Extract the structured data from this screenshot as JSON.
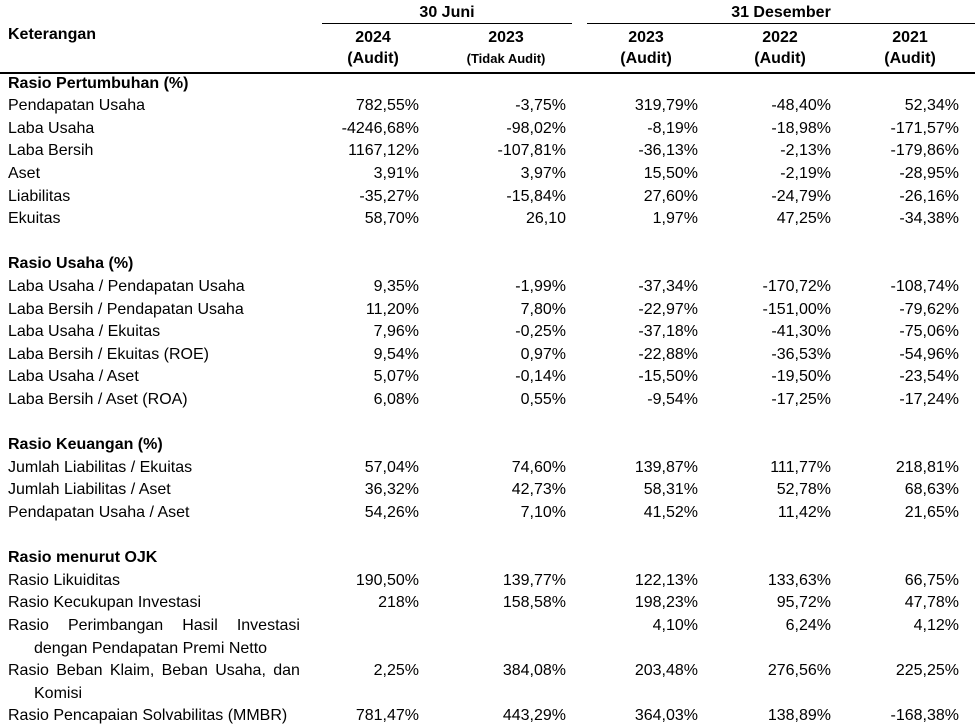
{
  "header": {
    "group_left": "30 Juni",
    "group_right": "31 Desember",
    "keterangan": "Keterangan",
    "columns": [
      {
        "year": "2024",
        "sub": "(Audit)"
      },
      {
        "year": "2023",
        "sub": "(Tidak Audit)"
      },
      {
        "year": "2023",
        "sub": "(Audit)"
      },
      {
        "year": "2022",
        "sub": "(Audit)"
      },
      {
        "year": "2021",
        "sub": "(Audit)"
      }
    ]
  },
  "rows": [
    {
      "kind": "section",
      "label": "Rasio Pertumbuhan (%)"
    },
    {
      "kind": "data",
      "label": "Pendapatan Usaha",
      "values": [
        "782,55%",
        "-3,75%",
        "319,79%",
        "-48,40%",
        "52,34%"
      ]
    },
    {
      "kind": "data",
      "label": "Laba Usaha",
      "values": [
        "-4246,68%",
        "-98,02%",
        "-8,19%",
        "-18,98%",
        "-171,57%"
      ]
    },
    {
      "kind": "data",
      "label": "Laba Bersih",
      "values": [
        "1167,12%",
        "-107,81%",
        "-36,13%",
        "-2,13%",
        "-179,86%"
      ]
    },
    {
      "kind": "data",
      "label": "Aset",
      "values": [
        "3,91%",
        "3,97%",
        "15,50%",
        "-2,19%",
        "-28,95%"
      ]
    },
    {
      "kind": "data",
      "label": "Liabilitas",
      "values": [
        "-35,27%",
        "-15,84%",
        "27,60%",
        "-24,79%",
        "-26,16%"
      ]
    },
    {
      "kind": "data",
      "label": "Ekuitas",
      "values": [
        "58,70%",
        "26,10",
        "1,97%",
        "47,25%",
        "-34,38%"
      ]
    },
    {
      "kind": "blank"
    },
    {
      "kind": "section",
      "label": "Rasio Usaha (%)"
    },
    {
      "kind": "data",
      "label": "Laba Usaha / Pendapatan Usaha",
      "values": [
        "9,35%",
        "-1,99%",
        "-37,34%",
        "-170,72%",
        "-108,74%"
      ]
    },
    {
      "kind": "data",
      "label": "Laba Bersih / Pendapatan Usaha",
      "values": [
        "11,20%",
        "7,80%",
        "-22,97%",
        "-151,00%",
        "-79,62%"
      ]
    },
    {
      "kind": "data",
      "label": "Laba Usaha / Ekuitas",
      "values": [
        "7,96%",
        "-0,25%",
        "-37,18%",
        "-41,30%",
        "-75,06%"
      ]
    },
    {
      "kind": "data",
      "label": "Laba Bersih / Ekuitas (ROE)",
      "values": [
        "9,54%",
        "0,97%",
        "-22,88%",
        "-36,53%",
        "-54,96%"
      ]
    },
    {
      "kind": "data",
      "label": "Laba Usaha / Aset",
      "values": [
        "5,07%",
        "-0,14%",
        "-15,50%",
        "-19,50%",
        "-23,54%"
      ]
    },
    {
      "kind": "data",
      "label": "Laba Bersih / Aset (ROA)",
      "values": [
        "6,08%",
        "0,55%",
        "-9,54%",
        "-17,25%",
        "-17,24%"
      ]
    },
    {
      "kind": "blank"
    },
    {
      "kind": "section",
      "label": "Rasio Keuangan (%)"
    },
    {
      "kind": "data",
      "label": "Jumlah Liabilitas / Ekuitas",
      "values": [
        "57,04%",
        "74,60%",
        "139,87%",
        "111,77%",
        "218,81%"
      ]
    },
    {
      "kind": "data",
      "label": "Jumlah Liabilitas / Aset",
      "values": [
        "36,32%",
        "42,73%",
        "58,31%",
        "52,78%",
        "68,63%"
      ]
    },
    {
      "kind": "data",
      "label": "Pendapatan Usaha / Aset",
      "values": [
        "54,26%",
        "7,10%",
        "41,52%",
        "11,42%",
        "21,65%"
      ]
    },
    {
      "kind": "blank"
    },
    {
      "kind": "section",
      "label": "Rasio menurut OJK"
    },
    {
      "kind": "data",
      "label": "Rasio Likuiditas",
      "values": [
        "190,50%",
        "139,77%",
        "122,13%",
        "133,63%",
        "66,75%"
      ]
    },
    {
      "kind": "data",
      "label": "Rasio Kecukupan Investasi",
      "values": [
        "218%",
        "158,58%",
        "198,23%",
        "95,72%",
        "47,78%"
      ]
    },
    {
      "kind": "data",
      "label": "Rasio Perimbangan Hasil Investasi",
      "justify": true,
      "values": [
        "",
        "",
        "4,10%",
        "6,24%",
        "4,12%"
      ]
    },
    {
      "kind": "cont",
      "label": "dengan Pendapatan Premi Netto"
    },
    {
      "kind": "data",
      "label": "Rasio Beban Klaim, Beban Usaha, dan",
      "justify": true,
      "values": [
        "2,25%",
        "384,08%",
        "203,48%",
        "276,56%",
        "225,25%"
      ]
    },
    {
      "kind": "cont",
      "label": "Komisi"
    },
    {
      "kind": "data",
      "label": "Rasio Pencapaian Solvabilitas (MMBR)",
      "values": [
        "781,47%",
        "443,29%",
        "364,03%",
        "138,89%",
        "-168,38%"
      ]
    }
  ]
}
